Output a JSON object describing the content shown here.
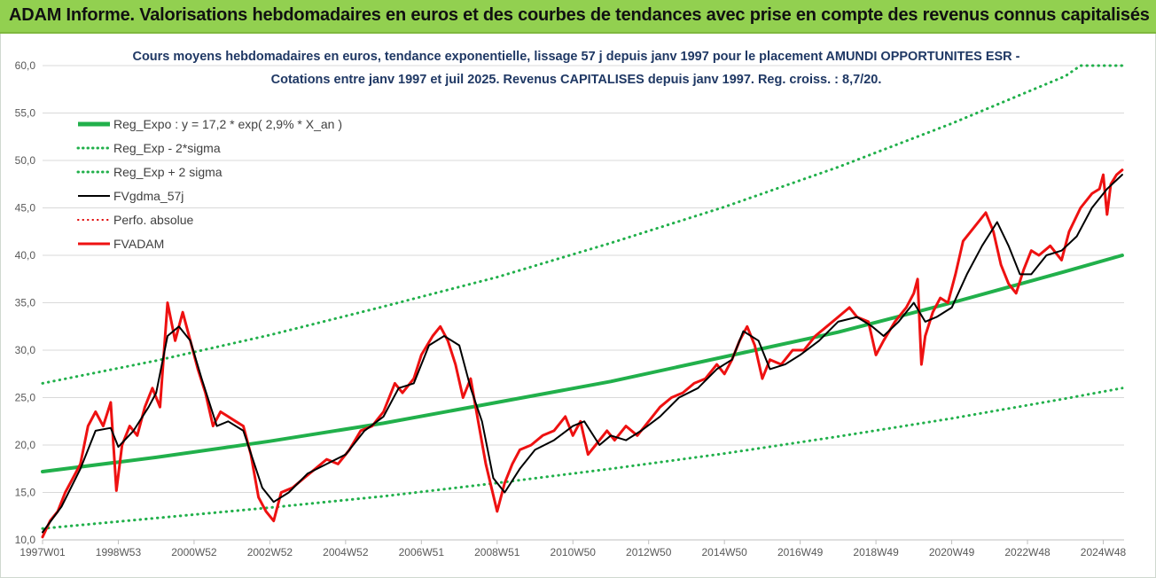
{
  "banner": {
    "text": "ADAM Informe. Valorisations hebdomadaires en euros et des courbes de tendances avec prise en compte des revenus connus capitalisés",
    "background": "#92d050"
  },
  "chart_data": {
    "type": "line",
    "title_lines": [
      "Cours moyens hebdomadaires en euros, tendance exponentielle, lissage 57 j depuis janv 1997 pour le placement AMUNDI OPPORTUNITES ESR -",
      "Cotations entre janv 1997 et juil 2025. Revenus CAPITALISES depuis janv 1997.  Reg. croiss. : 8,7/20."
    ],
    "xlabel": "",
    "ylabel": "",
    "ylim": [
      10,
      60
    ],
    "xlim": [
      1997.0,
      2025.55
    ],
    "y_ticks": [
      "10,0",
      "15,0",
      "20,0",
      "25,0",
      "30,0",
      "35,0",
      "40,0",
      "45,0",
      "50,0",
      "55,0",
      "60,0"
    ],
    "x_ticks": [
      {
        "label": "1997W01",
        "x": 1997.0
      },
      {
        "label": "1998W53",
        "x": 1999.0
      },
      {
        "label": "2000W52",
        "x": 2001.0
      },
      {
        "label": "2002W52",
        "x": 2003.0
      },
      {
        "label": "2004W52",
        "x": 2005.0
      },
      {
        "label": "2006W51",
        "x": 2007.0
      },
      {
        "label": "2008W51",
        "x": 2009.0
      },
      {
        "label": "2010W50",
        "x": 2011.0
      },
      {
        "label": "2012W50",
        "x": 2013.0
      },
      {
        "label": "2014W50",
        "x": 2015.0
      },
      {
        "label": "2016W49",
        "x": 2017.0
      },
      {
        "label": "2018W49",
        "x": 2019.0
      },
      {
        "label": "2020W49",
        "x": 2021.0
      },
      {
        "label": "2022W48",
        "x": 2023.0
      },
      {
        "label": "2024W48",
        "x": 2025.0
      }
    ],
    "grid": true,
    "legend_position": "top-left",
    "series": [
      {
        "name": "Reg_Expo : y = 17,2 * exp( 2,9% *  X_an )",
        "style": "solid",
        "color": "#21b04b",
        "width": 4,
        "points": [
          [
            1997.0,
            17.2
          ],
          [
            2000,
            18.7
          ],
          [
            2003,
            20.4
          ],
          [
            2006,
            22.3
          ],
          [
            2009,
            24.5
          ],
          [
            2012,
            26.7
          ],
          [
            2015,
            29.3
          ],
          [
            2018,
            31.9
          ],
          [
            2021,
            35.0
          ],
          [
            2024,
            38.3
          ],
          [
            2025.5,
            40.0
          ]
        ]
      },
      {
        "name": "Reg_Exp - 2*sigma",
        "style": "dotted",
        "color": "#21b04b",
        "width": 3,
        "points": [
          [
            1997.0,
            11.2
          ],
          [
            2000,
            12.3
          ],
          [
            2003,
            13.4
          ],
          [
            2006,
            14.6
          ],
          [
            2009,
            16.0
          ],
          [
            2012,
            17.5
          ],
          [
            2015,
            19.1
          ],
          [
            2018,
            20.9
          ],
          [
            2021,
            22.8
          ],
          [
            2024,
            24.9
          ],
          [
            2025.5,
            26.0
          ]
        ]
      },
      {
        "name": "Reg_Exp + 2 sigma",
        "style": "dotted",
        "color": "#21b04b",
        "width": 3,
        "points": [
          [
            1997.0,
            26.5
          ],
          [
            2000,
            28.9
          ],
          [
            2003,
            31.6
          ],
          [
            2006,
            34.6
          ],
          [
            2009,
            37.7
          ],
          [
            2012,
            41.3
          ],
          [
            2015,
            45.1
          ],
          [
            2018,
            49.3
          ],
          [
            2021,
            53.9
          ],
          [
            2024,
            58.9
          ],
          [
            2024.4,
            60.0
          ],
          [
            2025.5,
            60.0
          ]
        ]
      },
      {
        "name": "FVgdma_57j",
        "style": "solid",
        "color": "#000000",
        "width": 2,
        "points": [
          [
            1997.0,
            10.8
          ],
          [
            1997.5,
            13.5
          ],
          [
            1998.0,
            17.5
          ],
          [
            1998.4,
            21.5
          ],
          [
            1998.8,
            21.8
          ],
          [
            1999.0,
            19.8
          ],
          [
            1999.4,
            21.5
          ],
          [
            1999.8,
            24.0
          ],
          [
            2000.0,
            25.5
          ],
          [
            2000.3,
            31.5
          ],
          [
            2000.6,
            32.5
          ],
          [
            2000.9,
            31.0
          ],
          [
            2001.2,
            27.0
          ],
          [
            2001.6,
            22.0
          ],
          [
            2001.9,
            22.5
          ],
          [
            2002.3,
            21.5
          ],
          [
            2002.8,
            15.5
          ],
          [
            2003.1,
            14.0
          ],
          [
            2003.5,
            15.0
          ],
          [
            2004.0,
            17.0
          ],
          [
            2004.5,
            18.0
          ],
          [
            2005.0,
            19.0
          ],
          [
            2005.5,
            21.5
          ],
          [
            2006.0,
            23.0
          ],
          [
            2006.4,
            26.0
          ],
          [
            2006.8,
            26.5
          ],
          [
            2007.2,
            30.5
          ],
          [
            2007.6,
            31.5
          ],
          [
            2008.0,
            30.5
          ],
          [
            2008.3,
            26.0
          ],
          [
            2008.6,
            22.5
          ],
          [
            2008.9,
            16.5
          ],
          [
            2009.2,
            15.0
          ],
          [
            2009.6,
            17.5
          ],
          [
            2010.0,
            19.5
          ],
          [
            2010.5,
            20.5
          ],
          [
            2011.0,
            22.0
          ],
          [
            2011.3,
            22.5
          ],
          [
            2011.7,
            20.0
          ],
          [
            2012.0,
            21.0
          ],
          [
            2012.4,
            20.5
          ],
          [
            2012.8,
            21.5
          ],
          [
            2013.3,
            23.0
          ],
          [
            2013.8,
            25.0
          ],
          [
            2014.3,
            26.0
          ],
          [
            2014.8,
            28.0
          ],
          [
            2015.2,
            29.0
          ],
          [
            2015.5,
            32.0
          ],
          [
            2015.9,
            31.0
          ],
          [
            2016.2,
            28.0
          ],
          [
            2016.6,
            28.5
          ],
          [
            2017.0,
            29.5
          ],
          [
            2017.5,
            31.0
          ],
          [
            2018.0,
            33.0
          ],
          [
            2018.5,
            33.5
          ],
          [
            2018.9,
            32.5
          ],
          [
            2019.2,
            31.5
          ],
          [
            2019.6,
            33.0
          ],
          [
            2020.0,
            35.0
          ],
          [
            2020.3,
            33.0
          ],
          [
            2020.6,
            33.5
          ],
          [
            2021.0,
            34.5
          ],
          [
            2021.4,
            38.0
          ],
          [
            2021.8,
            41.0
          ],
          [
            2022.2,
            43.5
          ],
          [
            2022.5,
            41.0
          ],
          [
            2022.8,
            38.0
          ],
          [
            2023.1,
            38.0
          ],
          [
            2023.5,
            40.0
          ],
          [
            2023.9,
            40.5
          ],
          [
            2024.3,
            42.0
          ],
          [
            2024.7,
            45.0
          ],
          [
            2025.1,
            47.0
          ],
          [
            2025.5,
            48.5
          ]
        ]
      },
      {
        "name": "Perfo. absolue",
        "style": "dotted",
        "color": "#e00000",
        "width": 2,
        "points": []
      },
      {
        "name": "FVADAM",
        "style": "solid",
        "color": "#ee1111",
        "width": 3,
        "points": [
          [
            1997.0,
            10.3
          ],
          [
            1997.2,
            12.0
          ],
          [
            1997.4,
            13.0
          ],
          [
            1997.6,
            15.0
          ],
          [
            1997.8,
            16.5
          ],
          [
            1998.0,
            18.0
          ],
          [
            1998.2,
            22.0
          ],
          [
            1998.4,
            23.5
          ],
          [
            1998.6,
            22.0
          ],
          [
            1998.8,
            24.5
          ],
          [
            1998.95,
            15.2
          ],
          [
            1999.1,
            20.0
          ],
          [
            1999.3,
            22.0
          ],
          [
            1999.5,
            21.0
          ],
          [
            1999.7,
            24.0
          ],
          [
            1999.9,
            26.0
          ],
          [
            2000.1,
            24.0
          ],
          [
            2000.3,
            35.0
          ],
          [
            2000.5,
            31.0
          ],
          [
            2000.7,
            34.0
          ],
          [
            2000.9,
            31.0
          ],
          [
            2001.1,
            28.0
          ],
          [
            2001.3,
            25.5
          ],
          [
            2001.5,
            22.0
          ],
          [
            2001.7,
            23.5
          ],
          [
            2001.9,
            23.0
          ],
          [
            2002.1,
            22.5
          ],
          [
            2002.3,
            22.0
          ],
          [
            2002.5,
            19.0
          ],
          [
            2002.7,
            14.5
          ],
          [
            2002.9,
            13.0
          ],
          [
            2003.1,
            12.0
          ],
          [
            2003.3,
            15.0
          ],
          [
            2003.6,
            15.5
          ],
          [
            2003.9,
            16.5
          ],
          [
            2004.2,
            17.5
          ],
          [
            2004.5,
            18.5
          ],
          [
            2004.8,
            18.0
          ],
          [
            2005.1,
            19.5
          ],
          [
            2005.4,
            21.5
          ],
          [
            2005.7,
            22.0
          ],
          [
            2006.0,
            23.5
          ],
          [
            2006.3,
            26.5
          ],
          [
            2006.5,
            25.5
          ],
          [
            2006.8,
            27.0
          ],
          [
            2007.0,
            29.5
          ],
          [
            2007.3,
            31.5
          ],
          [
            2007.5,
            32.5
          ],
          [
            2007.7,
            31.0
          ],
          [
            2007.9,
            28.5
          ],
          [
            2008.1,
            25.0
          ],
          [
            2008.3,
            27.0
          ],
          [
            2008.5,
            22.5
          ],
          [
            2008.7,
            18.0
          ],
          [
            2008.85,
            15.5
          ],
          [
            2009.0,
            13.0
          ],
          [
            2009.2,
            16.0
          ],
          [
            2009.4,
            18.0
          ],
          [
            2009.6,
            19.5
          ],
          [
            2009.9,
            20.0
          ],
          [
            2010.2,
            21.0
          ],
          [
            2010.5,
            21.5
          ],
          [
            2010.8,
            23.0
          ],
          [
            2011.0,
            21.0
          ],
          [
            2011.2,
            22.5
          ],
          [
            2011.4,
            19.0
          ],
          [
            2011.6,
            20.0
          ],
          [
            2011.9,
            21.5
          ],
          [
            2012.1,
            20.5
          ],
          [
            2012.4,
            22.0
          ],
          [
            2012.7,
            21.0
          ],
          [
            2013.0,
            22.5
          ],
          [
            2013.3,
            24.0
          ],
          [
            2013.6,
            25.0
          ],
          [
            2013.9,
            25.5
          ],
          [
            2014.2,
            26.5
          ],
          [
            2014.5,
            27.0
          ],
          [
            2014.8,
            28.5
          ],
          [
            2015.0,
            27.5
          ],
          [
            2015.2,
            29.0
          ],
          [
            2015.4,
            31.0
          ],
          [
            2015.6,
            32.5
          ],
          [
            2015.8,
            30.5
          ],
          [
            2016.0,
            27.0
          ],
          [
            2016.2,
            29.0
          ],
          [
            2016.5,
            28.5
          ],
          [
            2016.8,
            30.0
          ],
          [
            2017.1,
            30.0
          ],
          [
            2017.4,
            31.5
          ],
          [
            2017.7,
            32.5
          ],
          [
            2018.0,
            33.5
          ],
          [
            2018.3,
            34.5
          ],
          [
            2018.5,
            33.5
          ],
          [
            2018.8,
            33.0
          ],
          [
            2019.0,
            29.5
          ],
          [
            2019.2,
            31.0
          ],
          [
            2019.5,
            33.0
          ],
          [
            2019.8,
            34.5
          ],
          [
            2020.0,
            36.0
          ],
          [
            2020.1,
            37.5
          ],
          [
            2020.2,
            28.5
          ],
          [
            2020.3,
            31.5
          ],
          [
            2020.5,
            34.0
          ],
          [
            2020.7,
            35.5
          ],
          [
            2020.9,
            35.0
          ],
          [
            2021.1,
            38.0
          ],
          [
            2021.3,
            41.5
          ],
          [
            2021.6,
            43.0
          ],
          [
            2021.9,
            44.5
          ],
          [
            2022.1,
            42.5
          ],
          [
            2022.3,
            39.0
          ],
          [
            2022.5,
            37.0
          ],
          [
            2022.7,
            36.0
          ],
          [
            2022.9,
            38.5
          ],
          [
            2023.1,
            40.5
          ],
          [
            2023.3,
            40.0
          ],
          [
            2023.6,
            41.0
          ],
          [
            2023.9,
            39.5
          ],
          [
            2024.1,
            42.5
          ],
          [
            2024.4,
            45.0
          ],
          [
            2024.7,
            46.5
          ],
          [
            2024.9,
            47.0
          ],
          [
            2025.0,
            48.5
          ],
          [
            2025.1,
            44.3
          ],
          [
            2025.2,
            47.5
          ],
          [
            2025.35,
            48.5
          ],
          [
            2025.5,
            49.0
          ]
        ]
      }
    ]
  }
}
